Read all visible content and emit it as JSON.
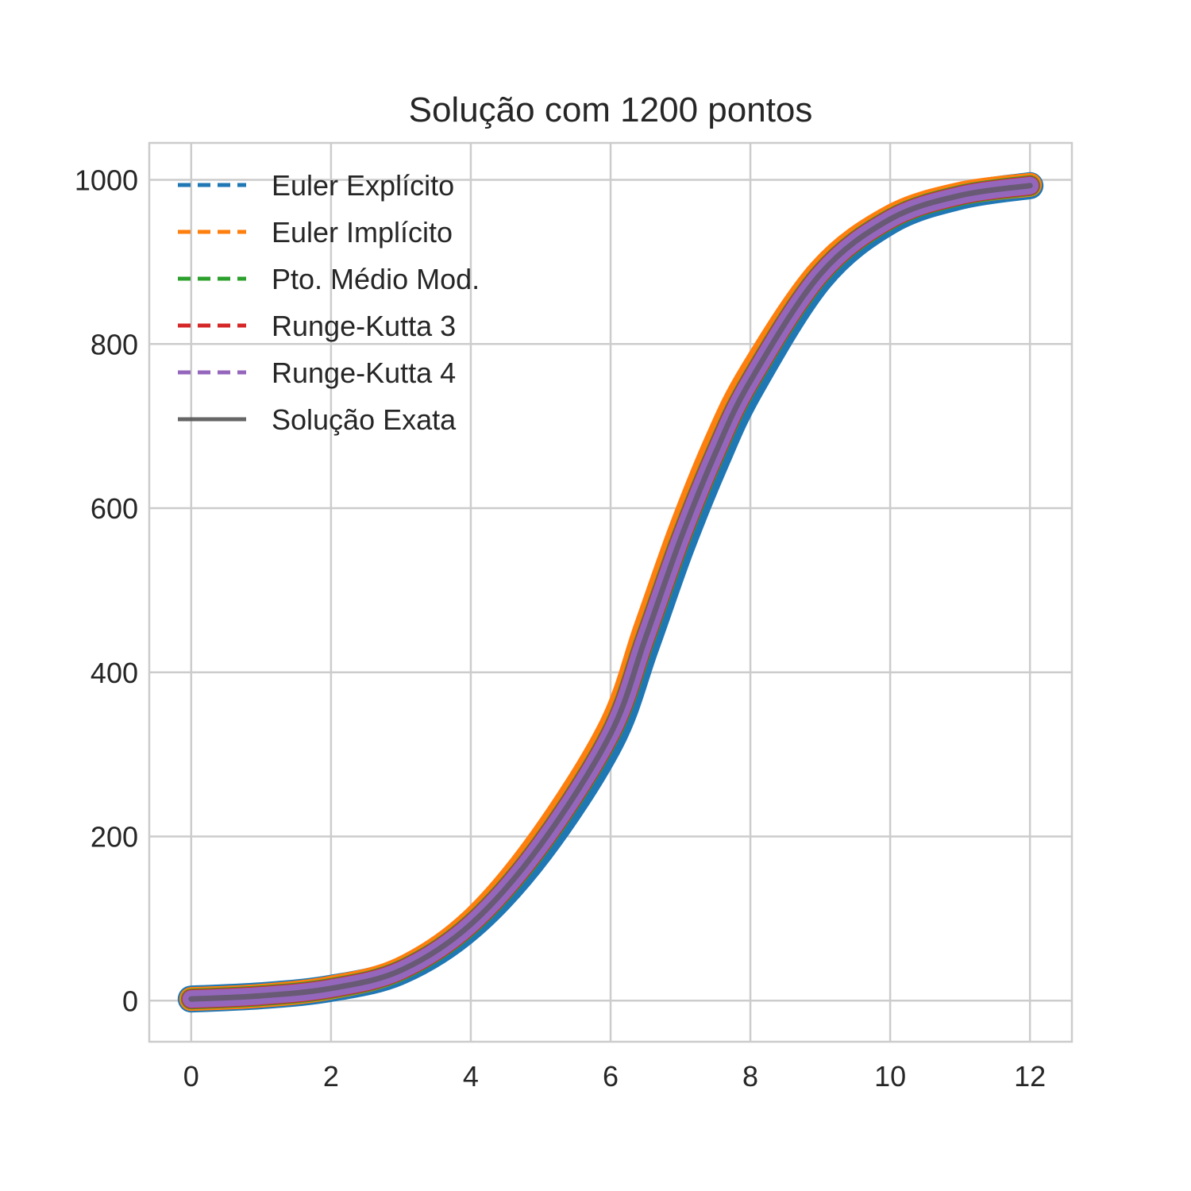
{
  "chart_data": {
    "type": "line",
    "title": "Solução com 1200 pontos",
    "xlabel": "",
    "ylabel": "",
    "xlim": [
      -0.6,
      12.6
    ],
    "ylim": [
      -50,
      1045
    ],
    "xticks": [
      0,
      2,
      4,
      6,
      8,
      10,
      12
    ],
    "yticks": [
      0,
      200,
      400,
      600,
      800,
      1000
    ],
    "xtick_labels": [
      "0",
      "2",
      "4",
      "6",
      "8",
      "10",
      "12"
    ],
    "ytick_labels": [
      "0",
      "200",
      "400",
      "600",
      "800",
      "1000"
    ],
    "grid": true,
    "legend_position": "top-left",
    "x": [
      0,
      1,
      2,
      3,
      4,
      5,
      6,
      6.5,
      7,
      7.5,
      8,
      9,
      10,
      11,
      12
    ],
    "series": [
      {
        "name": "Euler Explícito",
        "color": "#1f77b4",
        "style": "dashed",
        "values": [
          2,
          6,
          15,
          36,
          90,
          183,
          315,
          430,
          550,
          655,
          745,
          880,
          950,
          980,
          993
        ]
      },
      {
        "name": "Euler Implícito",
        "color": "#ff7f0e",
        "style": "dashed",
        "values": [
          2,
          6,
          16,
          39,
          97,
          198,
          335,
          455,
          575,
          680,
          765,
          890,
          955,
          983,
          994
        ]
      },
      {
        "name": "Pto. Médio Mod.",
        "color": "#2ca02c",
        "style": "dashed",
        "values": [
          2,
          6,
          15,
          37,
          93,
          190,
          325,
          442,
          562,
          667,
          755,
          885,
          952,
          981,
          993
        ]
      },
      {
        "name": "Runge-Kutta 3",
        "color": "#d62728",
        "style": "dashed",
        "values": [
          2,
          6,
          15,
          37,
          93,
          190,
          325,
          442,
          562,
          667,
          755,
          885,
          952,
          981,
          993
        ]
      },
      {
        "name": "Runge-Kutta 4",
        "color": "#9467bd",
        "style": "dashed",
        "values": [
          2,
          6,
          15,
          37,
          93,
          190,
          325,
          442,
          562,
          667,
          755,
          885,
          952,
          981,
          993
        ]
      },
      {
        "name": "Solução Exata",
        "color": "#555555",
        "style": "solid",
        "values": [
          2,
          6,
          15,
          37,
          93,
          190,
          325,
          442,
          562,
          667,
          755,
          885,
          952,
          981,
          993
        ]
      }
    ]
  }
}
